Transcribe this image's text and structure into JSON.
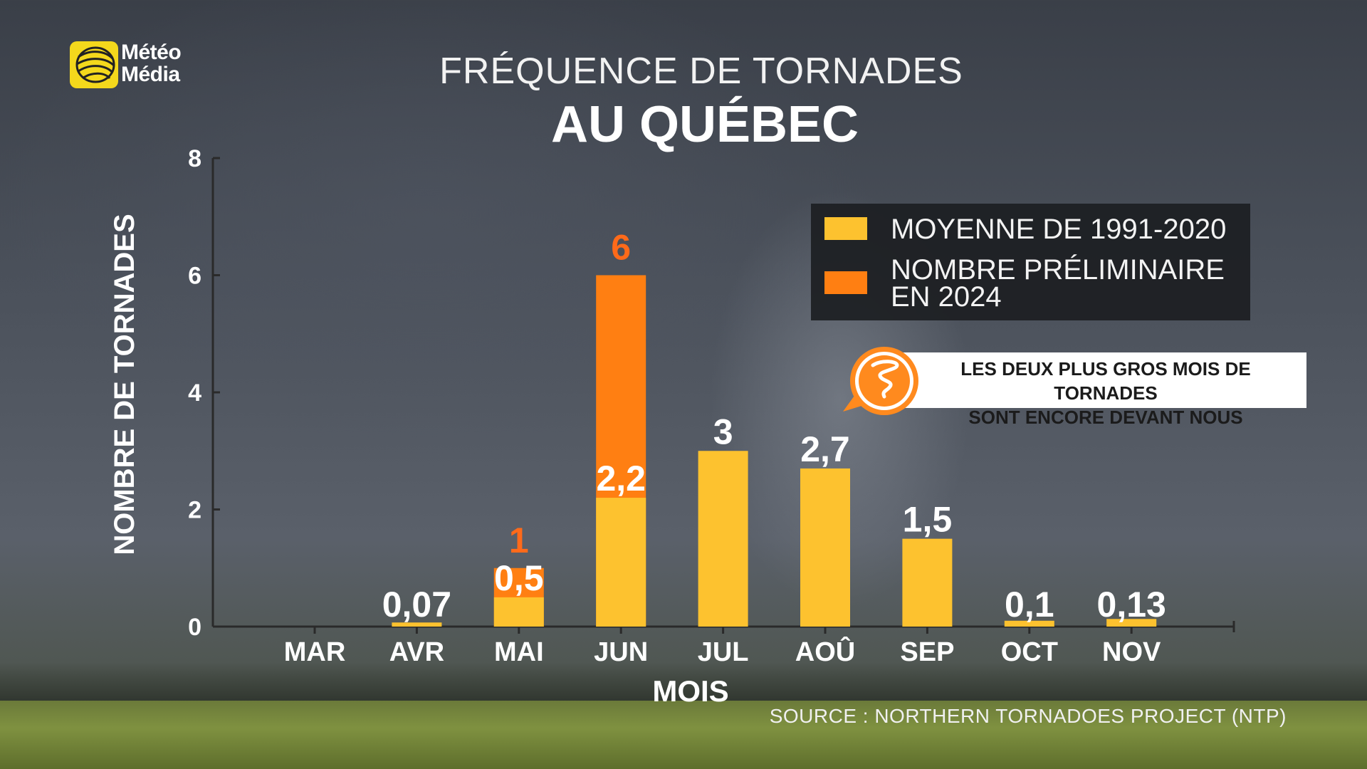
{
  "logo": {
    "line1": "Météo",
    "line2": "Média"
  },
  "title": {
    "line1": "FRÉQUENCE DE TORNADES",
    "line2": "AU QUÉBEC"
  },
  "legend": {
    "items": [
      {
        "label_lines": [
          "MOYENNE DE 1991-2020"
        ],
        "color": "#FDC22F"
      },
      {
        "label_lines": [
          "NOMBRE PRÉLIMINAIRE",
          "EN 2024"
        ],
        "color": "#FF7F12"
      }
    ]
  },
  "callout": {
    "lines": [
      "LES DEUX PLUS GROS MOIS DE TORNADES",
      "SONT ENCORE DEVANT NOUS"
    ],
    "icon": "tornado-icon"
  },
  "source": "SOURCE : NORTHERN TORNADOES PROJECT (NTP)",
  "colors": {
    "average": "#FDC22F",
    "preliminary": "#FF7F12",
    "label_orange": "#FF6A1A"
  },
  "chart_data": {
    "type": "bar",
    "xlabel": "MOIS",
    "ylabel": "NOMBRE DE TORNADES",
    "ylim": [
      0,
      8
    ],
    "yticks": [
      0,
      2,
      4,
      6,
      8
    ],
    "categories": [
      "MAR",
      "AVR",
      "MAI",
      "JUN",
      "JUL",
      "AOÛ",
      "SEP",
      "OCT",
      "NOV"
    ],
    "series": [
      {
        "name": "MOYENNE DE 1991-2020",
        "values": [
          null,
          0.07,
          0.5,
          2.2,
          3,
          2.7,
          1.5,
          0.1,
          0.13
        ],
        "labels": [
          "",
          "0,07",
          "0,5",
          "2,2",
          "3",
          "2,7",
          "1,5",
          "0,1",
          "0,13"
        ]
      },
      {
        "name": "NOMBRE PRÉLIMINAIRE EN 2024",
        "values": [
          null,
          null,
          1,
          6,
          null,
          null,
          null,
          null,
          null
        ],
        "labels": [
          "",
          "",
          "1",
          "6",
          "",
          "",
          "",
          "",
          ""
        ]
      }
    ],
    "legend_position": "top-right",
    "grid": false
  }
}
